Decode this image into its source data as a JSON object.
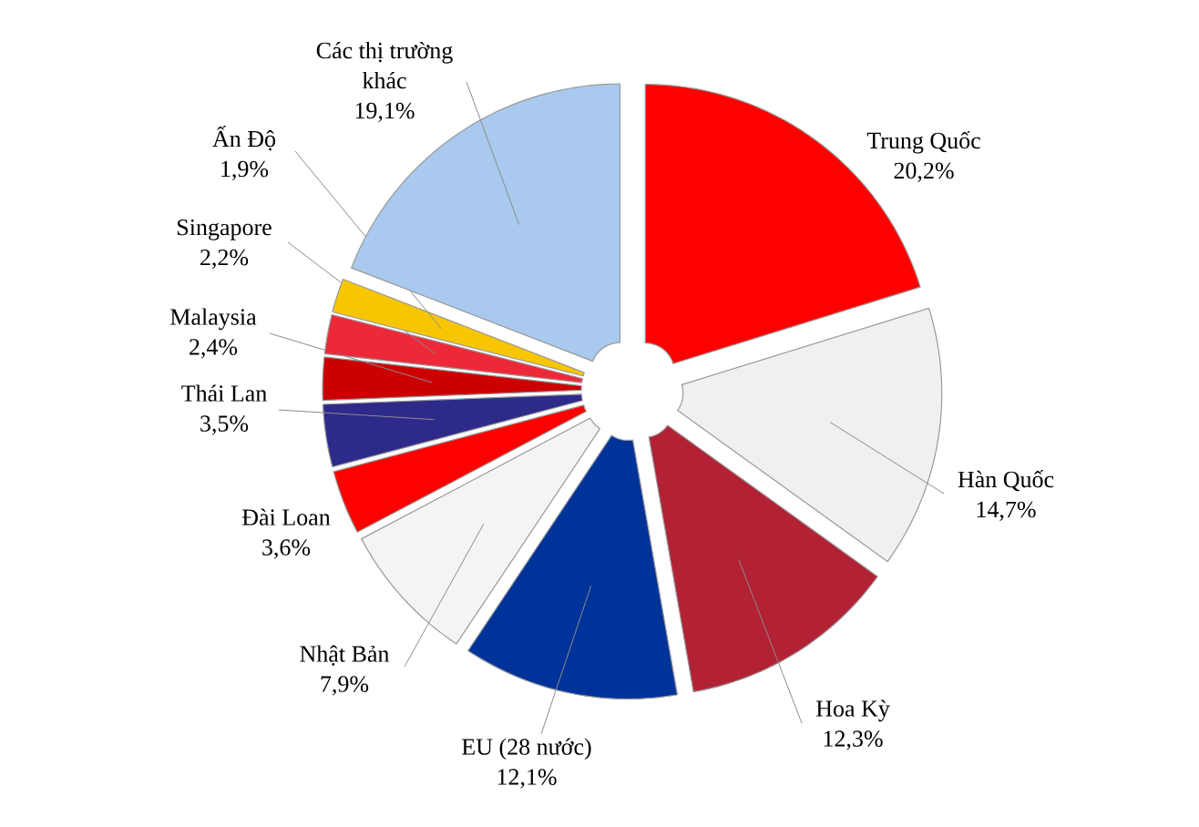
{
  "chart_data": {
    "type": "pie",
    "categories": [
      "Trung Quốc",
      "Hàn Quốc",
      "Hoa Kỳ",
      "EU (28 nước)",
      "Nhật Bản",
      "Đài Loan",
      "Thái Lan",
      "Malaysia",
      "Singapore",
      "Ấn Độ",
      "Các thị trường khác"
    ],
    "values": [
      20.2,
      14.7,
      12.3,
      12.1,
      7.9,
      3.6,
      3.5,
      2.4,
      2.2,
      1.9,
      19.1
    ],
    "value_labels": [
      "20,2%",
      "14,7%",
      "12,3%",
      "12,1%",
      "7,9%",
      "3,6%",
      "3,5%",
      "2,4%",
      "2,2%",
      "1,9%",
      "19,1%"
    ],
    "colors": [
      "#ff0000",
      "#f0f0f0",
      "#b22234",
      "#003399",
      "#f4f4f4",
      "#fe0000",
      "#2d2a8a",
      "#cc0001",
      "#ed2939",
      "#f7c600",
      "#a9c9ee"
    ]
  }
}
